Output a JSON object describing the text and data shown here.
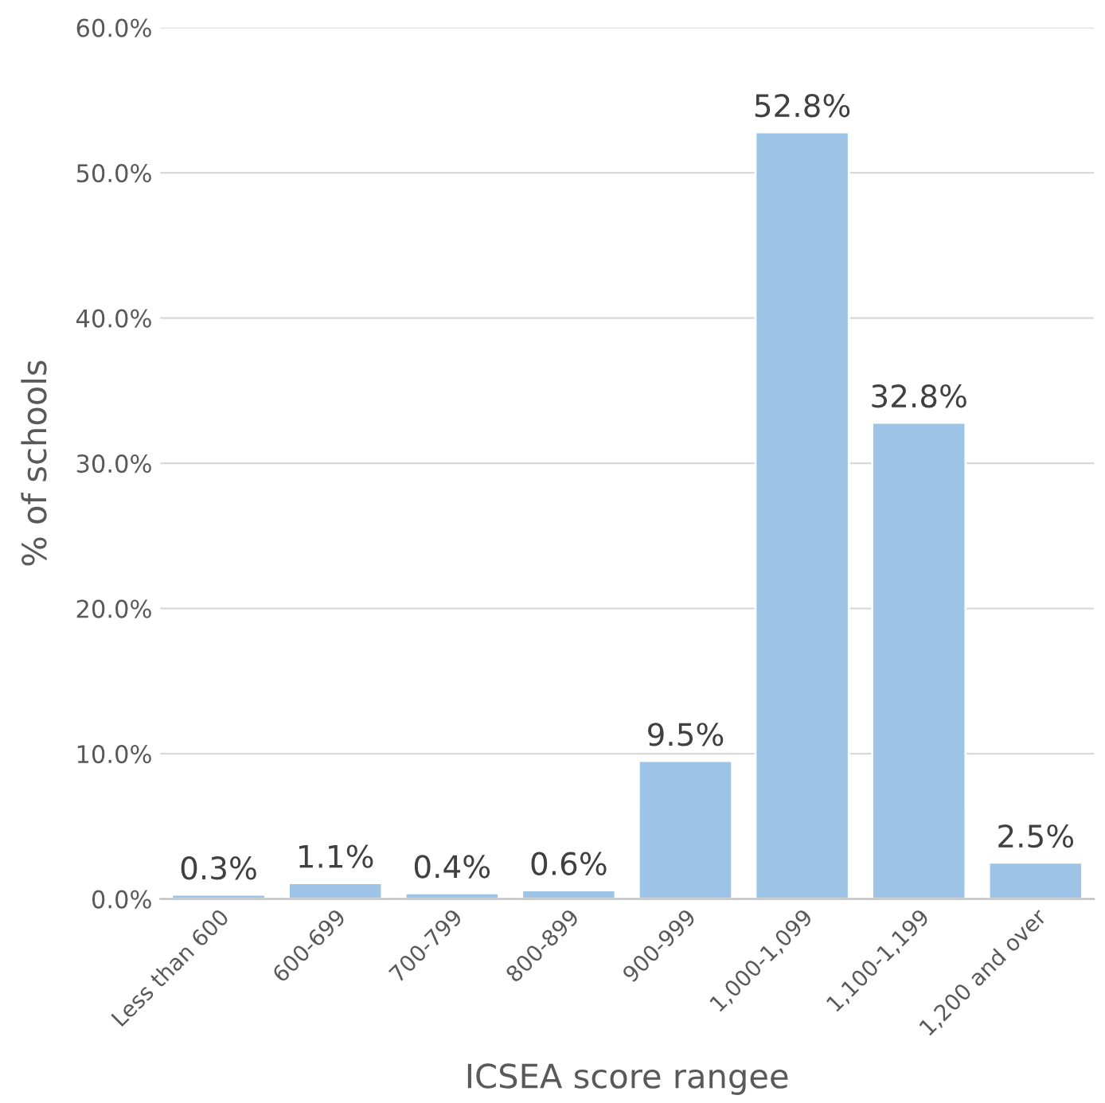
{
  "chart_data": {
    "type": "bar",
    "xlabel": "ICSEA score rangee",
    "ylabel": "% of schools",
    "categories": [
      "Less than 600",
      "600-699",
      "700-799",
      "800-899",
      "900-999",
      "1,000-1,099",
      "1,100-1,199",
      "1,200 and over"
    ],
    "values": [
      0.3,
      1.1,
      0.4,
      0.6,
      9.5,
      52.8,
      32.8,
      2.5
    ],
    "value_labels": [
      "0.3%",
      "1.1%",
      "0.4%",
      "0.6%",
      "9.5%",
      "52.8%",
      "32.8%",
      "2.5%"
    ],
    "color": "#9dc3e6",
    "ylim": [
      0,
      60
    ],
    "yticks": [
      {
        "value": 0,
        "label": "0.0%"
      },
      {
        "value": 10,
        "label": "10.0%"
      },
      {
        "value": 20,
        "label": "20.0%"
      },
      {
        "value": 30,
        "label": "30.0%"
      },
      {
        "value": 40,
        "label": "40.0%"
      },
      {
        "value": 50,
        "label": "50.0%"
      },
      {
        "value": 60,
        "label": "60.0%"
      }
    ],
    "grid": "y"
  }
}
